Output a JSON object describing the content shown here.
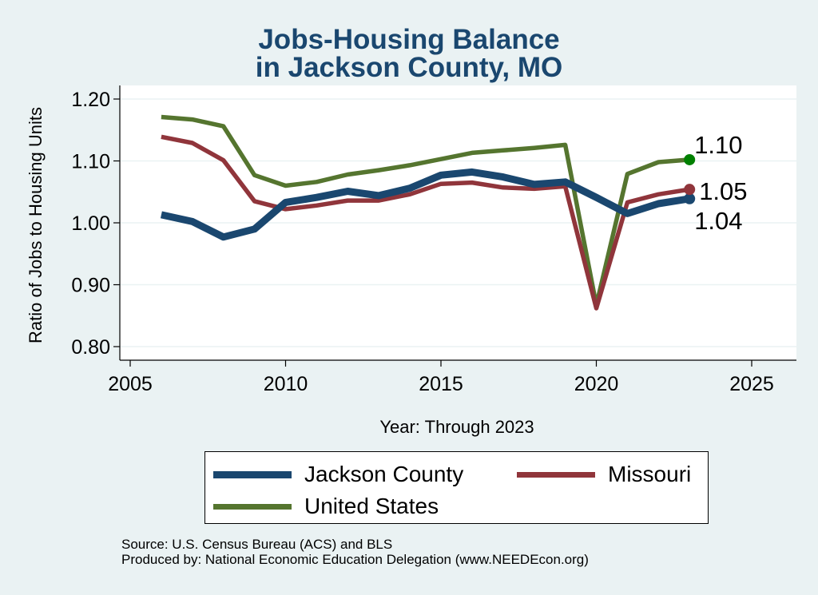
{
  "chart_data": {
    "type": "line",
    "title": [
      "Jobs-Housing Balance",
      "in Jackson County, MO"
    ],
    "xlabel": "Year: Through 2023",
    "ylabel": "Ratio of Jobs to Housing Units",
    "xlim": [
      2005,
      2025
    ],
    "ylim": [
      0.8,
      1.2
    ],
    "x_ticks": [
      2005,
      2010,
      2015,
      2020,
      2025
    ],
    "y_ticks": [
      0.8,
      0.9,
      1.0,
      1.1,
      1.2
    ],
    "y_tick_labels": [
      "0.80",
      "0.90",
      "1.00",
      "1.10",
      "1.20"
    ],
    "grid": "horizontal",
    "legend_position": "bottom",
    "x": [
      2006,
      2007,
      2008,
      2009,
      2010,
      2011,
      2012,
      2013,
      2014,
      2015,
      2016,
      2017,
      2018,
      2019,
      2020,
      2021,
      2022,
      2023
    ],
    "series": [
      {
        "name": "Jackson County",
        "color": "#1a476f",
        "width": "thick",
        "values": [
          1.013,
          1.002,
          0.977,
          0.99,
          1.033,
          1.041,
          1.051,
          1.044,
          1.056,
          1.077,
          1.082,
          1.074,
          1.062,
          1.066,
          1.041,
          1.015,
          1.031,
          1.039
        ],
        "end_label": "1.04"
      },
      {
        "name": "Missouri",
        "color": "#90353b",
        "width": "medium",
        "values": [
          1.139,
          1.129,
          1.101,
          1.035,
          1.022,
          1.028,
          1.036,
          1.036,
          1.046,
          1.063,
          1.065,
          1.057,
          1.055,
          1.059,
          0.862,
          1.033,
          1.046,
          1.054
        ],
        "end_label": "1.05"
      },
      {
        "name": "United States",
        "color": "#55752f",
        "width": "medium",
        "values": [
          1.171,
          1.167,
          1.156,
          1.077,
          1.06,
          1.066,
          1.078,
          1.085,
          1.093,
          1.103,
          1.113,
          1.117,
          1.121,
          1.126,
          0.867,
          1.079,
          1.098,
          1.102
        ],
        "end_label": "1.10",
        "end_marker_color": "#008000"
      }
    ],
    "legend": [
      {
        "label": "Jackson County",
        "color": "#1a476f"
      },
      {
        "label": "Missouri",
        "color": "#90353b"
      },
      {
        "label": "United States",
        "color": "#55752f"
      }
    ]
  },
  "source_lines": [
    "Source: U.S. Census Bureau (ACS) and BLS",
    "Produced by: National Economic Education Delegation (www.NEEDEcon.org)"
  ]
}
